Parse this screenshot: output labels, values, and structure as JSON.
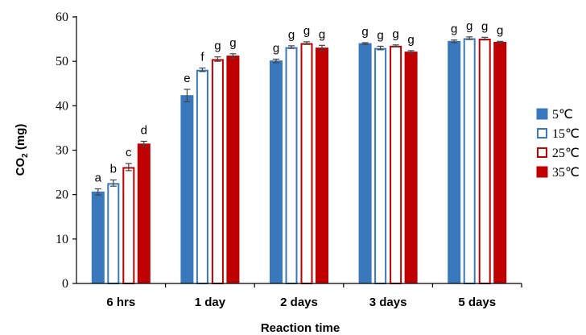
{
  "chart_data": {
    "type": "bar",
    "title": "",
    "xlabel": "Reaction time",
    "ylabel_main": "CO",
    "ylabel_sub": "2",
    "ylabel_tail": " (mg)",
    "ylim": [
      0,
      60
    ],
    "yticks": [
      "0",
      "10",
      "20",
      "30",
      "40",
      "50",
      "60"
    ],
    "categories": [
      "6 hrs",
      "1 day",
      "2 days",
      "3 days",
      "5 days"
    ],
    "legend_position": "right",
    "series": [
      {
        "name": "5℃",
        "style": "filled",
        "color": "#3A78BD",
        "values": [
          20.6,
          42.3,
          50.1,
          54.0,
          54.5
        ],
        "errors": [
          0.7,
          1.4,
          0.4,
          0.2,
          0.3
        ],
        "letters": [
          "a",
          "e",
          "g",
          "g",
          "g"
        ]
      },
      {
        "name": "15℃",
        "style": "hollow",
        "color": "#3A78BD",
        "values": [
          22.6,
          48.1,
          53.2,
          53.0,
          55.2
        ],
        "errors": [
          0.7,
          0.4,
          0.3,
          0.4,
          0.3
        ],
        "letters": [
          "b",
          "f",
          "g",
          "g",
          "g"
        ]
      },
      {
        "name": "25℃",
        "style": "hollow",
        "color": "#C00000",
        "values": [
          26.2,
          50.5,
          54.1,
          53.5,
          55.1
        ],
        "errors": [
          0.8,
          0.5,
          0.3,
          0.2,
          0.3
        ],
        "letters": [
          "c",
          "g",
          "g",
          "g",
          "g"
        ]
      },
      {
        "name": "35℃",
        "style": "filled",
        "color": "#C00000",
        "values": [
          31.4,
          51.2,
          53.0,
          52.1,
          54.3
        ],
        "errors": [
          0.6,
          0.5,
          0.6,
          0.3,
          0.2
        ],
        "letters": [
          "d",
          "g",
          "g",
          "g",
          "g"
        ]
      }
    ]
  }
}
